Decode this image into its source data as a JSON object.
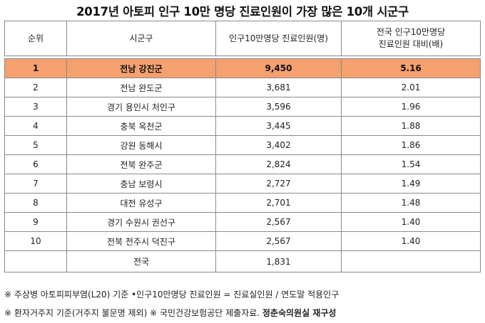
{
  "title": "2017년 아토피 인구 10만 명당 진료인원이 가장 많은 10개 시군구",
  "headers": {
    "rank": "순위",
    "region": "시군구",
    "per100k": "인구10만명당 진료인원(명)",
    "ratio_line1": "전국 인구10만명당",
    "ratio_line2": "진료인원 대비(배)"
  },
  "rows": [
    {
      "rank": "1",
      "region": "전남 강진군",
      "per100k": "9,450",
      "ratio": "5.16"
    },
    {
      "rank": "2",
      "region": "전남 완도군",
      "per100k": "3,681",
      "ratio": "2.01"
    },
    {
      "rank": "3",
      "region": "경기 용인시 처인구",
      "per100k": "3,596",
      "ratio": "1.96"
    },
    {
      "rank": "4",
      "region": "충북 옥천군",
      "per100k": "3,445",
      "ratio": "1.88"
    },
    {
      "rank": "5",
      "region": "강원 동해시",
      "per100k": "3,402",
      "ratio": "1.86"
    },
    {
      "rank": "6",
      "region": "전북 완주군",
      "per100k": "2,824",
      "ratio": "1.54"
    },
    {
      "rank": "7",
      "region": "충남 보령시",
      "per100k": "2,727",
      "ratio": "1.49"
    },
    {
      "rank": "8",
      "region": "대전 유성구",
      "per100k": "2,701",
      "ratio": "1.48"
    },
    {
      "rank": "9",
      "region": "경기 수원시 권선구",
      "per100k": "2,567",
      "ratio": "1.40"
    },
    {
      "rank": "10",
      "region": "전북 전주시 덕진구",
      "per100k": "2,567",
      "ratio": "1.40"
    }
  ],
  "total": {
    "label": "전국",
    "per100k": "1,831",
    "ratio": ""
  },
  "highlight_color": "#f4a06f",
  "notes": {
    "line1": "※ 주상병 아토피피부염(L20) 기준  •인구10만명당 진료인원 = 진료실인원 / 연도말 적용인구",
    "line2_plain": "※ 환자거주지 기준(거주지 불문명 제외) ※ 국민건강보험공단 제출자료. ",
    "line2_bold": "정춘숙의원실 재구성"
  }
}
